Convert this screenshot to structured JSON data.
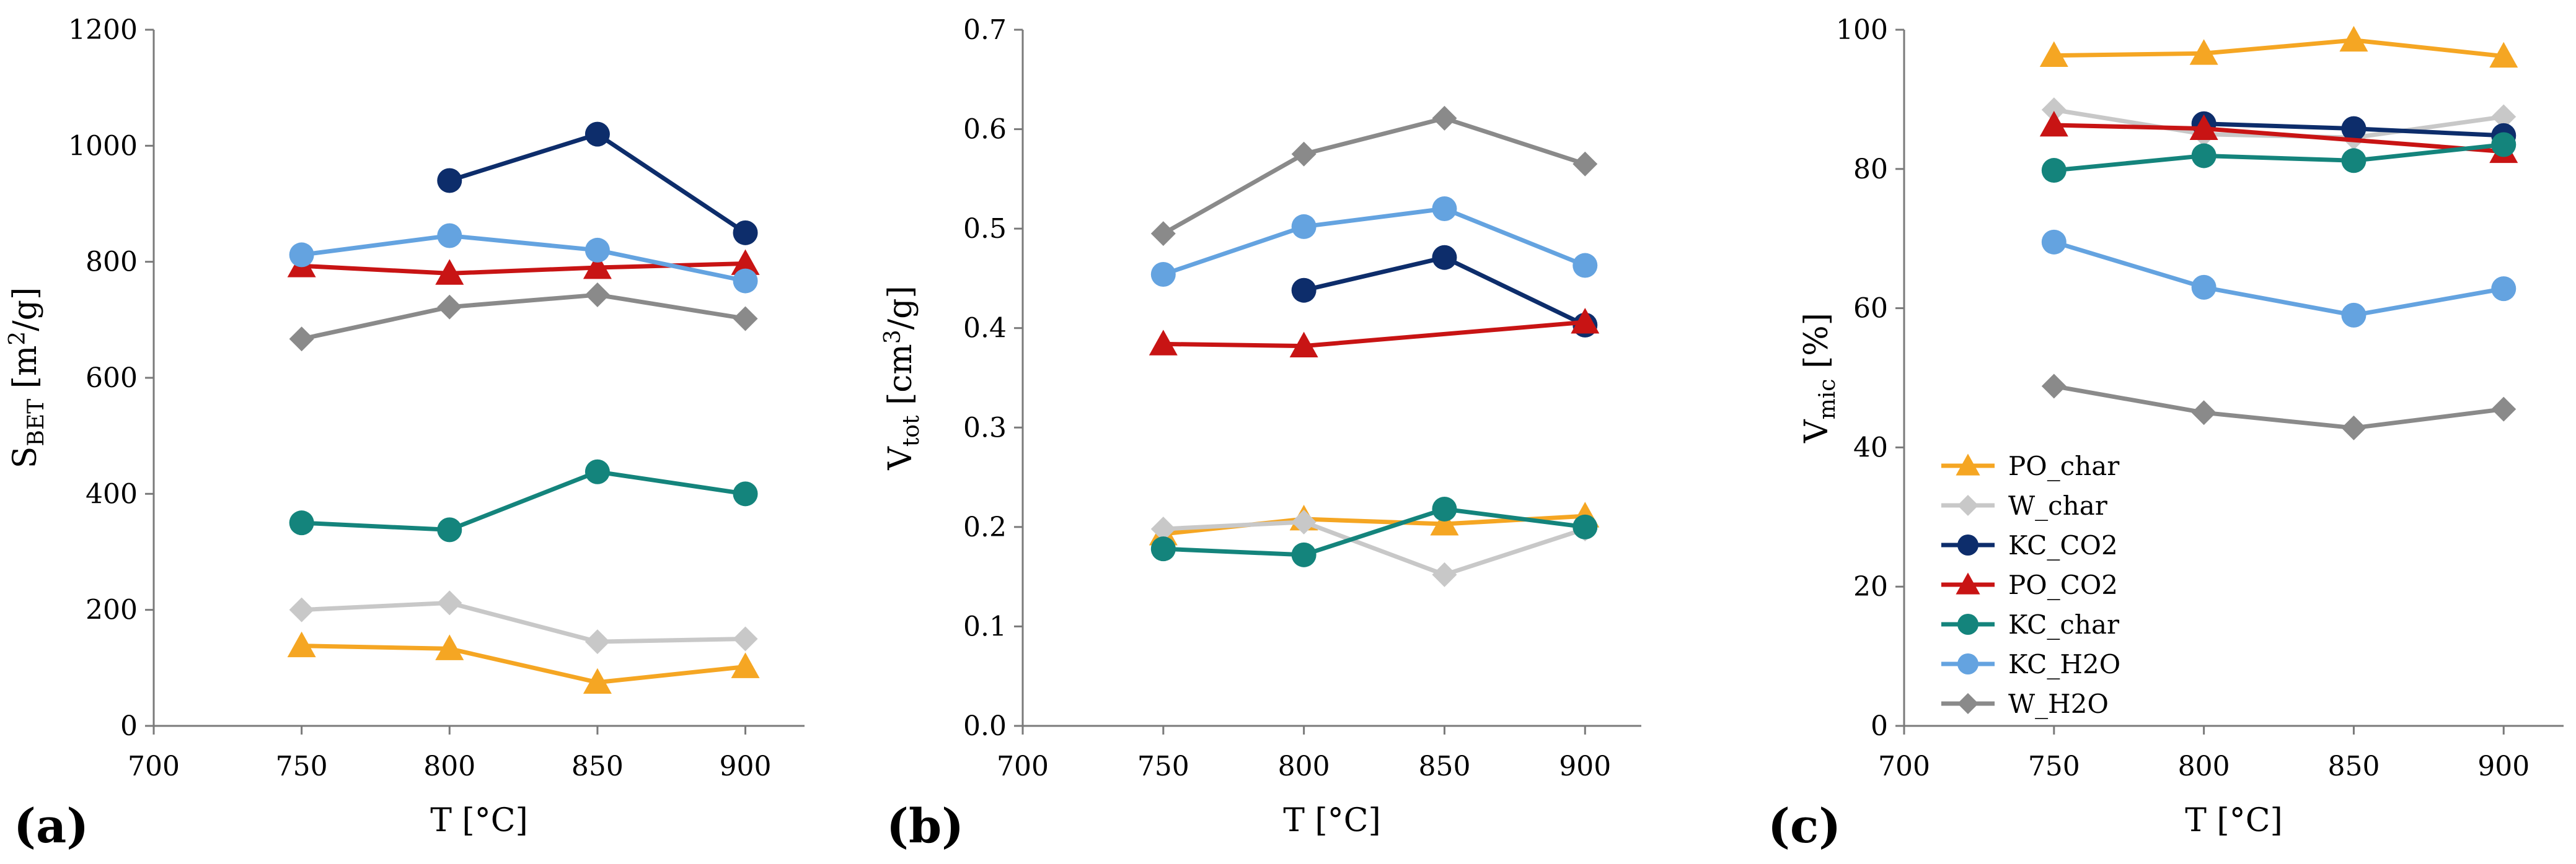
{
  "chart_data": [
    {
      "panel_label": "(a)",
      "type": "line",
      "xlabel": "T [°C]",
      "ylabel": "S_BET [m²/g]",
      "ylabel_main": "S",
      "ylabel_sub": "BET",
      "ylabel_rest": " [m",
      "ylabel_sup": "2",
      "ylabel_end": "/g]",
      "xlim": [
        700,
        920
      ],
      "ylim": [
        0,
        1200
      ],
      "xticks": [
        700,
        750,
        800,
        850,
        900
      ],
      "yticks": [
        0,
        200,
        400,
        600,
        800,
        1000,
        1200
      ],
      "ytick_decimals": 0,
      "grid": false,
      "series": [
        {
          "name": "PO_char",
          "color": "#f5a623",
          "marker": "triangle",
          "x": [
            750,
            800,
            850,
            900
          ],
          "y": [
            138,
            133,
            75,
            102
          ]
        },
        {
          "name": "W_char",
          "color": "#c8c8c8",
          "marker": "diamond",
          "x": [
            750,
            800,
            850,
            900
          ],
          "y": [
            200,
            212,
            145,
            150
          ]
        },
        {
          "name": "KC_CO2",
          "color": "#0d2d6b",
          "marker": "circle",
          "x": [
            800,
            850,
            900
          ],
          "y": [
            940,
            1020,
            850
          ]
        },
        {
          "name": "PO_CO2",
          "color": "#c81414",
          "marker": "triangle",
          "x": [
            750,
            800,
            850,
            900
          ],
          "y": [
            793,
            780,
            790,
            797
          ]
        },
        {
          "name": "KC_char",
          "color": "#14847c",
          "marker": "circle",
          "x": [
            750,
            800,
            850,
            900
          ],
          "y": [
            350,
            338,
            438,
            400
          ]
        },
        {
          "name": "KC_H2O",
          "color": "#64a3e0",
          "marker": "circle",
          "x": [
            750,
            800,
            850,
            900
          ],
          "y": [
            812,
            845,
            820,
            767
          ]
        },
        {
          "name": "W_H2O",
          "color": "#8a8a8a",
          "marker": "diamond",
          "x": [
            750,
            800,
            850,
            900
          ],
          "y": [
            667,
            722,
            743,
            702
          ]
        }
      ]
    },
    {
      "panel_label": "(b)",
      "type": "line",
      "xlabel": "T [°C]",
      "ylabel": "V_tot [cm³/g]",
      "ylabel_main": "V",
      "ylabel_sub": "tot",
      "ylabel_rest": " [cm",
      "ylabel_sup": "3",
      "ylabel_end": "/g]",
      "xlim": [
        700,
        920
      ],
      "ylim": [
        0,
        0.7
      ],
      "xticks": [
        700,
        750,
        800,
        850,
        900
      ],
      "yticks": [
        0,
        0.1,
        0.2,
        0.3,
        0.4,
        0.5,
        0.6,
        0.7
      ],
      "ytick_decimals": 1,
      "grid": false,
      "series": [
        {
          "name": "PO_char",
          "color": "#f5a623",
          "marker": "triangle",
          "x": [
            750,
            800,
            850,
            900
          ],
          "y": [
            0.193,
            0.208,
            0.203,
            0.211
          ]
        },
        {
          "name": "W_char",
          "color": "#c8c8c8",
          "marker": "diamond",
          "x": [
            750,
            800,
            850,
            900
          ],
          "y": [
            0.198,
            0.205,
            0.152,
            0.198
          ]
        },
        {
          "name": "KC_CO2",
          "color": "#0d2d6b",
          "marker": "circle",
          "x": [
            800,
            850,
            900
          ],
          "y": [
            0.438,
            0.471,
            0.403
          ]
        },
        {
          "name": "PO_CO2",
          "color": "#c81414",
          "marker": "triangle",
          "x": [
            750,
            800,
            900
          ],
          "y": [
            0.384,
            0.382,
            0.406
          ]
        },
        {
          "name": "KC_char",
          "color": "#14847c",
          "marker": "circle",
          "x": [
            750,
            800,
            850,
            900
          ],
          "y": [
            0.178,
            0.172,
            0.218,
            0.2
          ]
        },
        {
          "name": "KC_H2O",
          "color": "#64a3e0",
          "marker": "circle",
          "x": [
            750,
            800,
            850,
            900
          ],
          "y": [
            0.454,
            0.502,
            0.52,
            0.463
          ]
        },
        {
          "name": "W_H2O",
          "color": "#8a8a8a",
          "marker": "diamond",
          "x": [
            750,
            800,
            850,
            900
          ],
          "y": [
            0.495,
            0.575,
            0.611,
            0.565
          ]
        }
      ]
    },
    {
      "panel_label": "(c)",
      "type": "line",
      "xlabel": "T [°C]",
      "ylabel": "V_mic [%]",
      "ylabel_main": "V",
      "ylabel_sub": "mic",
      "ylabel_rest": " [%]",
      "ylabel_sup": "",
      "ylabel_end": "",
      "xlim": [
        700,
        920
      ],
      "ylim": [
        0,
        100
      ],
      "xticks": [
        700,
        750,
        800,
        850,
        900
      ],
      "yticks": [
        0,
        20,
        40,
        60,
        80,
        100
      ],
      "ytick_decimals": 0,
      "grid": false,
      "legend": "lower-left",
      "series": [
        {
          "name": "PO_char",
          "color": "#f5a623",
          "marker": "triangle",
          "x": [
            750,
            800,
            850,
            900
          ],
          "y": [
            96.3,
            96.6,
            98.5,
            96.2
          ]
        },
        {
          "name": "W_char",
          "color": "#c8c8c8",
          "marker": "diamond",
          "x": [
            750,
            800,
            850,
            900
          ],
          "y": [
            88.5,
            85.0,
            84.5,
            87.5
          ]
        },
        {
          "name": "KC_CO2",
          "color": "#0d2d6b",
          "marker": "circle",
          "x": [
            800,
            850,
            900
          ],
          "y": [
            86.5,
            85.8,
            84.8
          ]
        },
        {
          "name": "PO_CO2",
          "color": "#c81414",
          "marker": "triangle",
          "x": [
            750,
            800,
            900
          ],
          "y": [
            86.3,
            85.8,
            82.5
          ]
        },
        {
          "name": "KC_char",
          "color": "#14847c",
          "marker": "circle",
          "x": [
            750,
            800,
            850,
            900
          ],
          "y": [
            79.8,
            81.9,
            81.2,
            83.5
          ]
        },
        {
          "name": "KC_H2O",
          "color": "#64a3e0",
          "marker": "circle",
          "x": [
            750,
            800,
            850,
            900
          ],
          "y": [
            69.5,
            63.0,
            59.0,
            62.8
          ]
        },
        {
          "name": "W_H2O",
          "color": "#8a8a8a",
          "marker": "diamond",
          "x": [
            750,
            800,
            850,
            900
          ],
          "y": [
            48.8,
            45.0,
            42.8,
            45.5
          ]
        }
      ]
    }
  ]
}
